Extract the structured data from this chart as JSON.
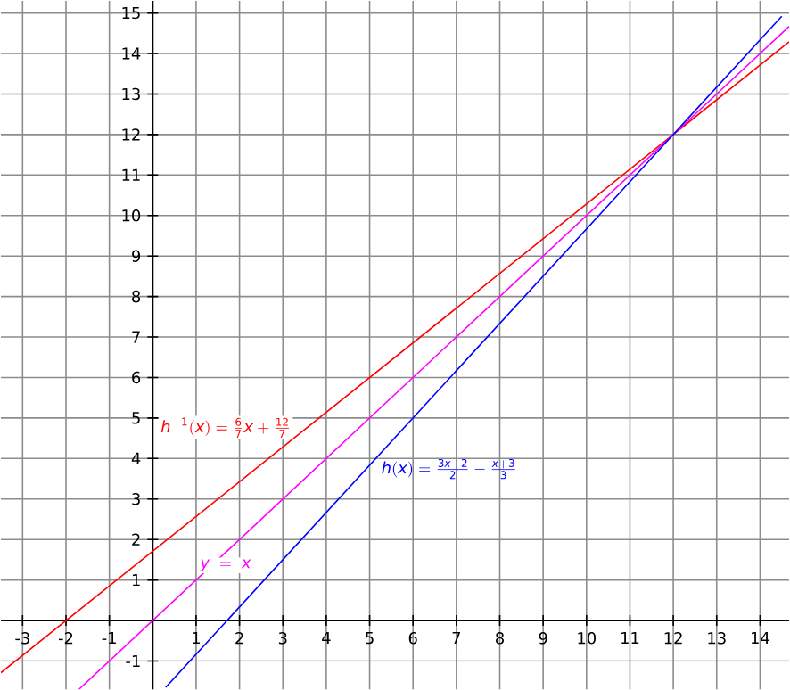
{
  "chart_data": {
    "type": "line",
    "xlim": [
      -3.5,
      14.67
    ],
    "ylim": [
      -1.7,
      15.3
    ],
    "xticks": [
      -3,
      -2,
      -1,
      {
        "value": 0,
        "label": null
      },
      1,
      2,
      3,
      4,
      5,
      6,
      7,
      8,
      9,
      10,
      11,
      12,
      13,
      14
    ],
    "yticks": [
      -1,
      {
        "value": 0,
        "label": null
      },
      1,
      2,
      3,
      4,
      5,
      6,
      7,
      8,
      9,
      10,
      11,
      12,
      13,
      14,
      15
    ],
    "grid": true,
    "marker": "none",
    "line_style": "solid",
    "series": [
      {
        "color": "#ff0000",
        "x": [
          -3.5,
          14.67
        ],
        "values": [
          -1.29,
          14.29
        ]
      },
      {
        "color": "#ff00ff",
        "x": [
          -1.7,
          14.67
        ],
        "values": [
          -1.7,
          14.67
        ]
      },
      {
        "color": "#0000ff",
        "x": [
          0.3,
          14.5
        ],
        "values": [
          -1.65,
          14.92
        ]
      }
    ],
    "annotations": [
      "h^{-1}(x)=\\frac{6}{7}x+\\frac{12}{7}",
      "y\\ =\\ x",
      "h(x)=\\frac{3x-2}{2}-\\frac{x+3}{3}"
    ]
  }
}
